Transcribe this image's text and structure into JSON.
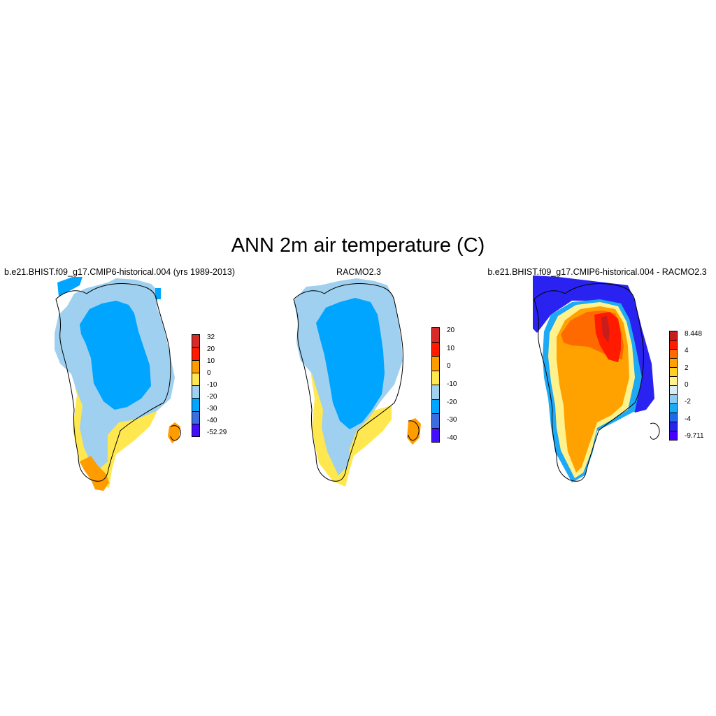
{
  "title": "ANN 2m air temperature (C)",
  "panels": [
    {
      "title": "b.e21.BHIST.f09_g17.CMIP6-historical.004 (yrs 1989-2013)",
      "colorbar": {
        "labels": [
          "32",
          "20",
          "10",
          "0",
          "-10",
          "-20",
          "-30",
          "-40",
          "-52.29"
        ],
        "colors": [
          "#d92a2a",
          "#ff1a00",
          "#ff9d00",
          "#ffe84f",
          "#9fd0ef",
          "#00a5ff",
          "#3a6ee0",
          "#4210ff"
        ]
      }
    },
    {
      "title": "RACMO2.3",
      "colorbar": {
        "labels": [
          "20",
          "10",
          "0",
          "-10",
          "-20",
          "-30",
          "-40"
        ],
        "colors": [
          "#d92a2a",
          "#ff1a00",
          "#ff9d00",
          "#ffe84f",
          "#9fd0ef",
          "#00a5ff",
          "#3a6ee0",
          "#4210ff"
        ]
      }
    },
    {
      "title": "b.e21.BHIST.f09_g17.CMIP6-historical.004 - RACMO2.3",
      "colorbar": {
        "labels": [
          "8.448",
          "4",
          "2",
          "0",
          "-2",
          "-4",
          "-9.711"
        ],
        "colors": [
          "#c81d1d",
          "#ff1a00",
          "#ff6a00",
          "#ffa200",
          "#ffd023",
          "#fff28c",
          "#d8ecf7",
          "#89ccef",
          "#1ea9f5",
          "#1d6be8",
          "#2a22f0",
          "#4a00ff"
        ]
      }
    }
  ]
}
